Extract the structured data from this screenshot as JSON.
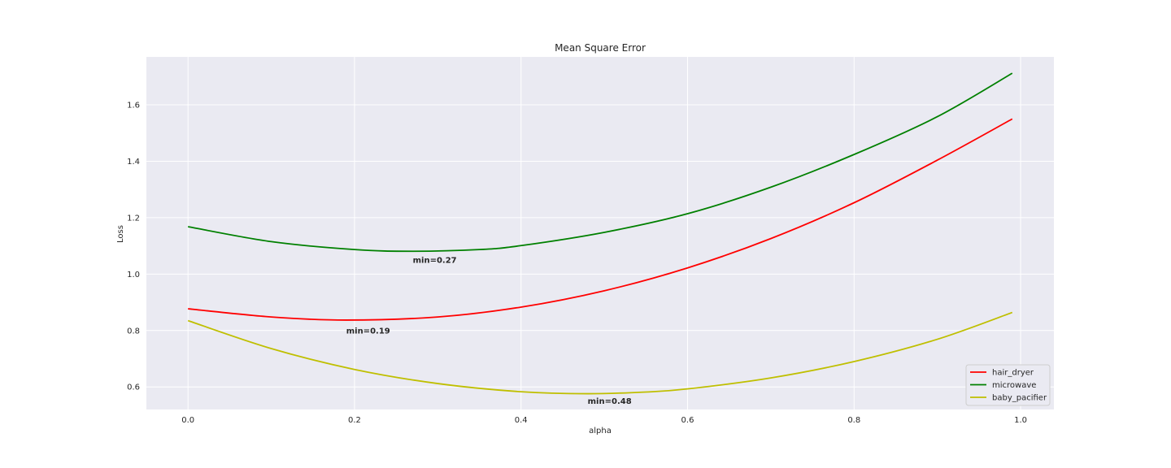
{
  "chart_data": {
    "type": "line",
    "title": "Mean Square Error",
    "xlabel": "alpha",
    "ylabel": "Loss",
    "xlim": [
      -0.05,
      1.04
    ],
    "ylim": [
      0.52,
      1.77
    ],
    "xticks": [
      0.0,
      0.2,
      0.4,
      0.6,
      0.8,
      1.0
    ],
    "xtick_labels": [
      "0.0",
      "0.2",
      "0.4",
      "0.6",
      "0.8",
      "1.0"
    ],
    "yticks": [
      0.6,
      0.8,
      1.0,
      1.2,
      1.4,
      1.6
    ],
    "ytick_labels": [
      "0.6",
      "0.8",
      "1.0",
      "1.2",
      "1.4",
      "1.6"
    ],
    "grid": true,
    "legend_position": "bottom-right",
    "series": [
      {
        "name": "hair_dryer",
        "color": "#ff0000",
        "x": [
          0.0,
          0.1,
          0.19,
          0.3,
          0.4,
          0.5,
          0.6,
          0.7,
          0.8,
          0.9,
          0.99
        ],
        "y": [
          0.877,
          0.848,
          0.837,
          0.848,
          0.883,
          0.941,
          1.022,
          1.126,
          1.253,
          1.404,
          1.55
        ]
      },
      {
        "name": "microwave",
        "color": "#008000",
        "x": [
          0.0,
          0.1,
          0.2,
          0.27,
          0.35,
          0.4,
          0.5,
          0.6,
          0.7,
          0.8,
          0.9,
          0.99
        ],
        "y": [
          1.168,
          1.115,
          1.087,
          1.081,
          1.087,
          1.101,
          1.148,
          1.214,
          1.308,
          1.424,
          1.558,
          1.712
        ]
      },
      {
        "name": "baby_pacifier",
        "color": "#bfbf00",
        "x": [
          0.0,
          0.1,
          0.2,
          0.3,
          0.4,
          0.48,
          0.55,
          0.6,
          0.7,
          0.8,
          0.9,
          0.99
        ],
        "y": [
          0.835,
          0.736,
          0.662,
          0.612,
          0.583,
          0.576,
          0.582,
          0.593,
          0.632,
          0.69,
          0.769,
          0.864
        ]
      }
    ],
    "annotations": [
      {
        "text": "min=0.19",
        "x": 0.19,
        "y": 0.8
      },
      {
        "text": "min=0.27",
        "x": 0.27,
        "y": 1.05
      },
      {
        "text": "min=0.48",
        "x": 0.48,
        "y": 0.55
      }
    ]
  }
}
